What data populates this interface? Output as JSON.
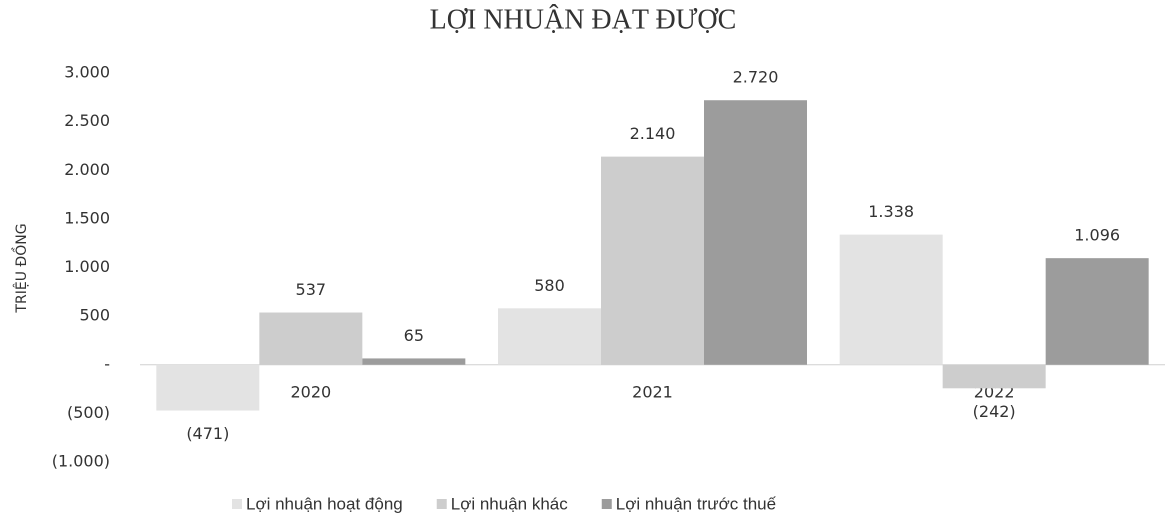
{
  "chart_data": {
    "type": "bar",
    "title": "LỢI NHUẬN ĐẠT ĐƯỢC",
    "y_label": "TRIỆU ĐỒNG",
    "categories": [
      "2020",
      "2021",
      "2022"
    ],
    "series": [
      {
        "name": "Lợi nhuận hoạt động",
        "color": "#e3e3e3",
        "values": [
          -471,
          580,
          1338
        ],
        "value_labels": [
          "(471)",
          "580",
          "1.338"
        ]
      },
      {
        "name": "Lợi nhuận khác",
        "color": "#cdcdcd",
        "values": [
          537,
          2140,
          -242
        ],
        "value_labels": [
          "537",
          "2.140",
          "(242)"
        ]
      },
      {
        "name": "Lợi nhuận trước thuế",
        "color": "#9c9c9c",
        "values": [
          65,
          2720,
          1096
        ],
        "value_labels": [
          "65",
          "2.720",
          "1.096"
        ]
      }
    ],
    "ylim": [
      -1000,
      3000
    ],
    "yticks": [
      {
        "value": -1000,
        "label": "(1.000)"
      },
      {
        "value": -500,
        "label": "(500)"
      },
      {
        "value": 0,
        "label": "-"
      },
      500,
      {
        "value": 1000,
        "label": "1.000"
      },
      {
        "value": 1500,
        "label": "1.500"
      },
      {
        "value": 2000,
        "label": "2.000"
      },
      {
        "value": 2500,
        "label": "2.500"
      },
      {
        "value": 3000,
        "label": "3.000"
      }
    ],
    "grid": false,
    "legend": "bottom"
  }
}
